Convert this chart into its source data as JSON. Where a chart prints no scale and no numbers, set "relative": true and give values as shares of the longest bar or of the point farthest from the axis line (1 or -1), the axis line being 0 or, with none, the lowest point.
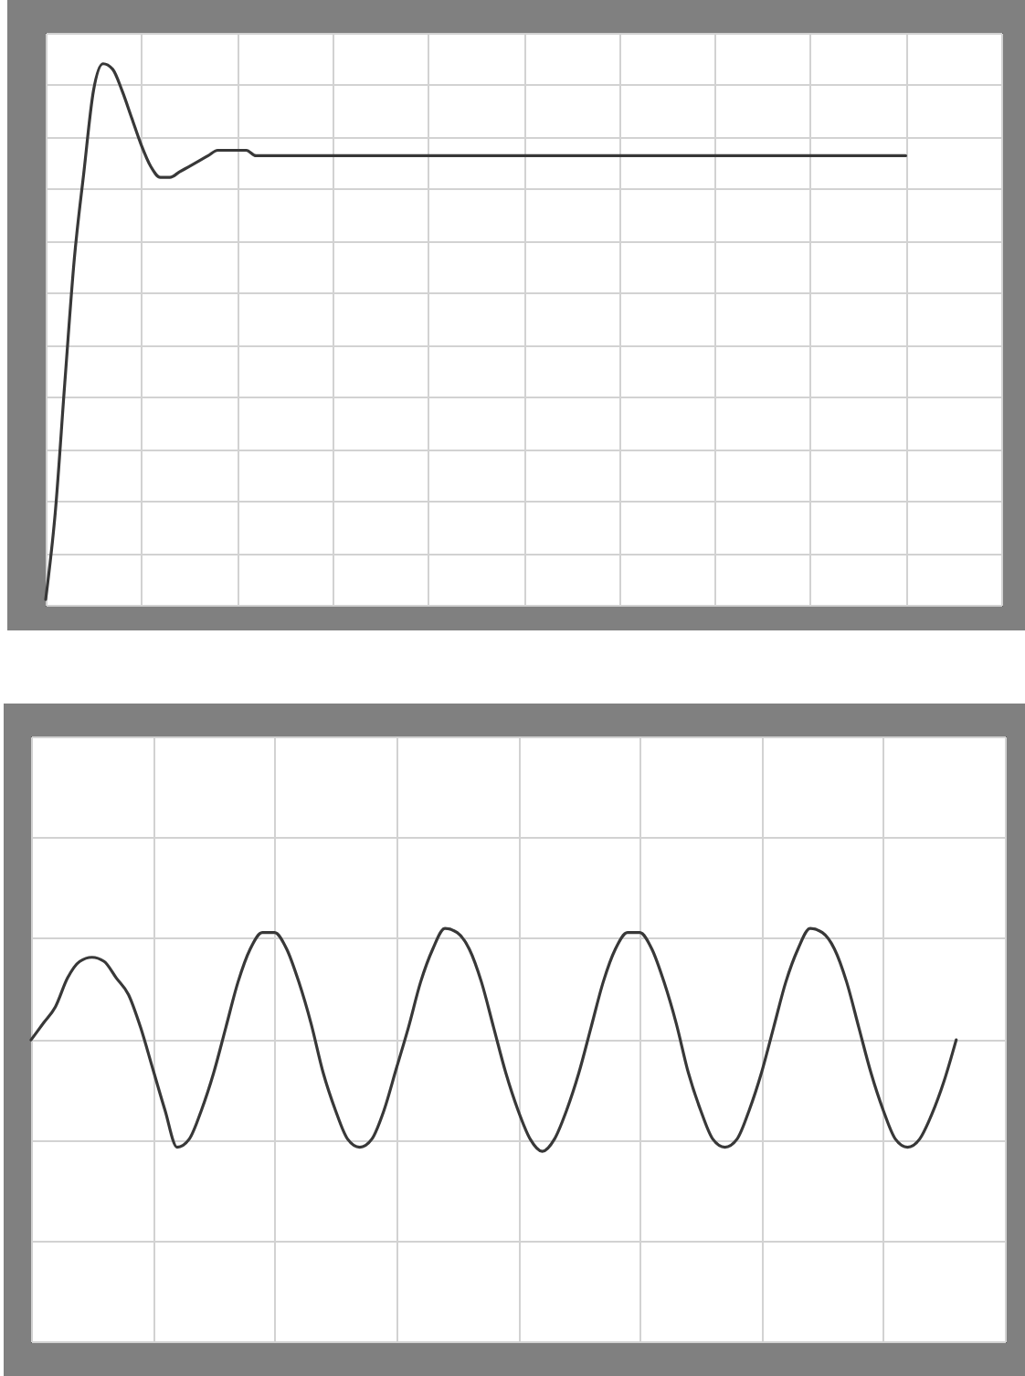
{
  "chart_data": [
    {
      "type": "line",
      "relative": true,
      "grid": true,
      "color": "#383838",
      "categories": [
        null,
        null,
        null,
        null,
        null,
        null,
        null,
        null,
        null,
        null,
        null,
        null,
        null,
        null,
        null,
        null,
        null,
        null,
        null,
        null,
        null,
        null,
        null,
        null,
        null,
        null,
        null,
        null,
        null,
        null,
        null,
        null,
        null,
        null,
        null,
        null,
        null,
        null,
        null,
        null,
        null,
        null,
        null,
        null,
        null,
        null,
        null,
        null,
        null,
        null,
        null,
        null,
        null,
        null,
        null,
        null,
        null,
        null,
        null,
        null,
        null,
        null,
        null,
        null,
        null,
        null,
        null,
        null,
        null,
        null,
        null,
        null,
        null,
        null,
        null,
        null,
        null,
        null,
        null,
        null,
        null,
        null,
        null,
        null,
        null,
        null,
        null,
        null,
        null,
        null,
        null,
        null,
        null,
        null,
        null,
        null,
        null,
        null,
        null,
        null,
        null
      ],
      "values": [
        0.01,
        0.17,
        0.41,
        0.64,
        0.8,
        0.95,
        1,
        0.99,
        0.95,
        0.9,
        0.85,
        0.81,
        0.79,
        0.79,
        0.8,
        0.81,
        0.82,
        0.83,
        0.84,
        0.84,
        0.84,
        0.84,
        0.83,
        0.83,
        0.83,
        0.83,
        0.83,
        0.83,
        0.83,
        0.83,
        0.83,
        0.83,
        0.83,
        0.83,
        0.83,
        0.83,
        0.83,
        0.83,
        0.83,
        0.83,
        0.83,
        0.83,
        0.83,
        0.83,
        0.83,
        0.83,
        0.83,
        0.83,
        0.83,
        0.83,
        0.83,
        0.83,
        0.83,
        0.83,
        0.83,
        0.83,
        0.83,
        0.83,
        0.83,
        0.83,
        0.83,
        0.83,
        0.83,
        0.83,
        0.83,
        0.83,
        0.83,
        0.83,
        0.83,
        0.83,
        0.83,
        0.83,
        0.83,
        0.83,
        0.83,
        0.83,
        0.83,
        0.83,
        0.83,
        0.83,
        0.83,
        0.83,
        0.83,
        0.83,
        0.83,
        0.83,
        0.83,
        0.83,
        0.83,
        0.83,
        0.83,
        null,
        null,
        null,
        null,
        null,
        null,
        null,
        null,
        null,
        null
      ]
    },
    {
      "type": "line",
      "relative": true,
      "grid": true,
      "color": "#383838",
      "categories": [
        null,
        null,
        null,
        null,
        null,
        null,
        null,
        null,
        null,
        null,
        null,
        null,
        null,
        null,
        null,
        null,
        null,
        null,
        null,
        null,
        null,
        null,
        null,
        null,
        null,
        null,
        null,
        null,
        null,
        null,
        null,
        null,
        null,
        null,
        null,
        null,
        null,
        null,
        null,
        null,
        null,
        null,
        null,
        null,
        null,
        null,
        null,
        null,
        null,
        null,
        null,
        null,
        null,
        null,
        null,
        null,
        null,
        null,
        null,
        null,
        null,
        null,
        null,
        null,
        null,
        null,
        null,
        null,
        null,
        null,
        null,
        null,
        null,
        null,
        null,
        null,
        null,
        null,
        null,
        null,
        null
      ],
      "values": [
        0.73,
        0.77,
        0.81,
        0.88,
        0.92,
        0.93,
        0.92,
        0.88,
        0.84,
        0.76,
        0.66,
        0.56,
        0.47,
        0.49,
        0.56,
        0.65,
        0.76,
        0.87,
        0.95,
        0.99,
        0.99,
        0.95,
        0.87,
        0.77,
        0.65,
        0.56,
        0.49,
        0.47,
        0.49,
        0.56,
        0.66,
        0.76,
        0.87,
        0.95,
        1,
        0.99,
        0.95,
        0.87,
        0.76,
        0.65,
        0.56,
        0.49,
        0.46,
        0.49,
        0.56,
        0.65,
        0.76,
        0.87,
        0.95,
        0.99,
        0.99,
        0.95,
        0.87,
        0.77,
        0.65,
        0.56,
        0.49,
        0.47,
        0.49,
        0.56,
        0.65,
        0.76,
        0.87,
        0.95,
        1,
        0.99,
        0.95,
        0.87,
        0.76,
        0.65,
        0.56,
        0.49,
        0.47,
        0.49,
        0.55,
        0.63,
        0.73,
        null,
        null,
        null,
        null
      ]
    }
  ]
}
